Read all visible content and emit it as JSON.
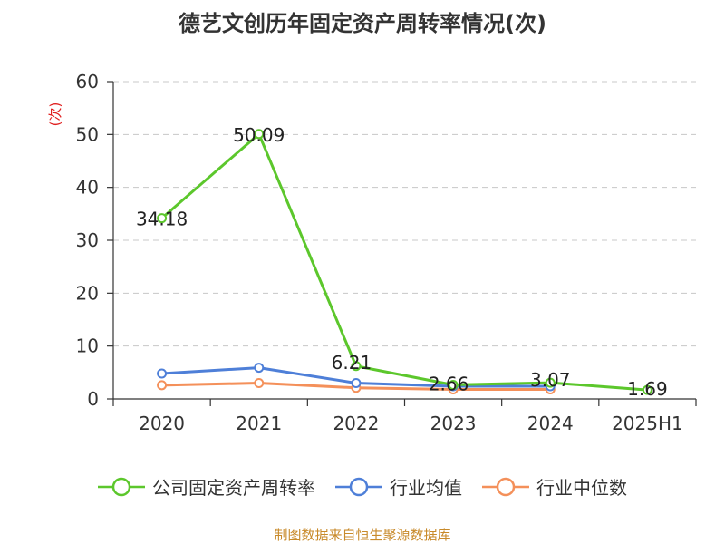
{
  "title": "德艺文创历年固定资产周转率情况(次)",
  "source": "制图数据来自恒生聚源数据库",
  "chart_data": {
    "type": "line",
    "title": "德艺文创历年固定资产周转率情况(次)",
    "categories": [
      "2020",
      "2021",
      "2022",
      "2023",
      "2024",
      "2025H1"
    ],
    "ylabel": "(次)",
    "ylim": [
      0,
      60
    ],
    "yticks": [
      0,
      10,
      20,
      30,
      40,
      50,
      60
    ],
    "grid": true,
    "legend_position": "bottom",
    "series": [
      {
        "name": "公司固定资产周转率",
        "color": "#5cc72c",
        "values": [
          34.18,
          50.09,
          6.21,
          2.66,
          3.07,
          1.69
        ],
        "labels": [
          "34.18",
          "50.09",
          "6.21",
          "2.66",
          "3.07",
          "1.69"
        ]
      },
      {
        "name": "行业均值",
        "color": "#4e7fd8",
        "values": [
          4.8,
          5.9,
          3.0,
          2.4,
          2.4,
          null
        ]
      },
      {
        "name": "行业中位数",
        "color": "#f4905a",
        "values": [
          2.6,
          3.0,
          2.1,
          1.8,
          1.8,
          null
        ]
      }
    ]
  }
}
